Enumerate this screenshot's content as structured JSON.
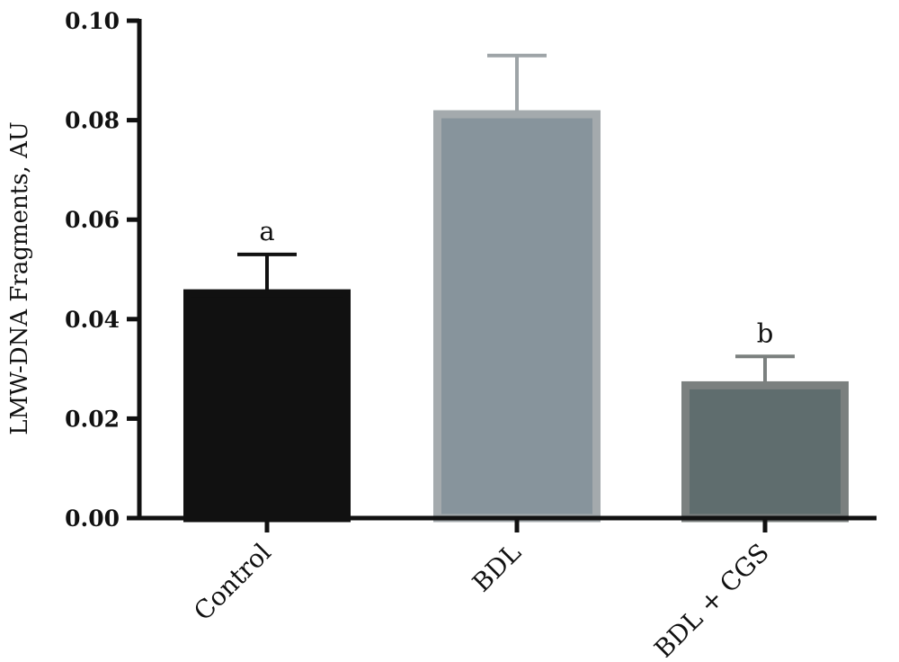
{
  "chart_data": {
    "type": "bar",
    "title": "",
    "xlabel": "",
    "ylabel": "LMW-DNA Fragments, AU",
    "ylim": [
      0,
      0.1
    ],
    "yticks": [
      "0.00",
      "0.02",
      "0.04",
      "0.06",
      "0.08",
      "0.10"
    ],
    "categories": [
      "Control",
      "BDL",
      "BDL + CGS"
    ],
    "values": [
      0.046,
      0.082,
      0.0275
    ],
    "errors": [
      0.007,
      0.011,
      0.005
    ],
    "annotations": [
      "a",
      "",
      "b"
    ],
    "colors": {
      "fills": [
        "#111111",
        "#87949c",
        "#5f6d6e"
      ],
      "edges": [
        "#111111",
        "#a4aaad",
        "#7b807f"
      ],
      "error_bars": [
        "#111111",
        "#9ea4a7",
        "#7b807f"
      ],
      "axis": "#111111"
    },
    "grid": false,
    "legend": "none"
  }
}
